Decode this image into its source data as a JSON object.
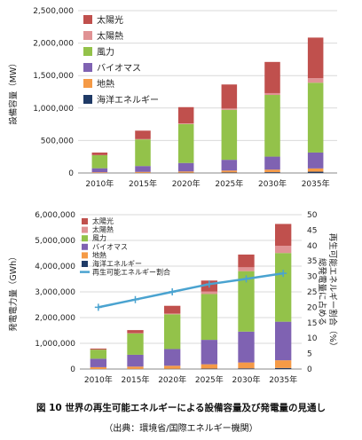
{
  "chart_data": [
    {
      "type": "bar",
      "stacked": true,
      "ylabel": "設備容量（MW）",
      "ylim": [
        0,
        2500000
      ],
      "yticks": [
        "0",
        "500,000",
        "1,000,000",
        "1,500,000",
        "2,000,000",
        "2,500,000"
      ],
      "grid": true,
      "legend": "top-left",
      "categories": [
        "2010年",
        "2015年",
        "2020年",
        "2025年",
        "2030年",
        "2035年"
      ],
      "series": [
        {
          "name": "海洋エネルギー",
          "color": "#1f3a66",
          "values": [
            1000,
            2000,
            4000,
            8000,
            12000,
            20000
          ]
        },
        {
          "name": "地熱",
          "color": "#f59a46",
          "values": [
            10000,
            15000,
            20000,
            30000,
            40000,
            50000
          ]
        },
        {
          "name": "バイオマス",
          "color": "#7f62b2",
          "values": [
            62000,
            90000,
            130000,
            165000,
            200000,
            245000
          ]
        },
        {
          "name": "風力",
          "color": "#93c24a",
          "values": [
            200000,
            410000,
            600000,
            770000,
            950000,
            1075000
          ]
        },
        {
          "name": "太陽熱",
          "color": "#e09294",
          "values": [
            2000,
            5000,
            10000,
            20000,
            28000,
            70000
          ]
        },
        {
          "name": "太陽光",
          "color": "#c0504d",
          "values": [
            40000,
            130000,
            250000,
            370000,
            480000,
            625000
          ]
        }
      ]
    },
    {
      "type": "bar",
      "stacked": true,
      "ylabel": "発電電力量（GWh）",
      "ylabel_right": "総発電量に占める再生可能エネルギー割合（%）",
      "ylim": [
        0,
        6000000
      ],
      "ylim_right": [
        0,
        50
      ],
      "yticks": [
        "0",
        "1,000,000",
        "2,000,000",
        "3,000,000",
        "4,000,000",
        "5,000,000",
        "6,000,000"
      ],
      "yticks_right": [
        "0",
        "5",
        "10",
        "15",
        "20",
        "25",
        "30",
        "35",
        "40",
        "45",
        "50"
      ],
      "grid": true,
      "legend": "top-left",
      "categories": [
        "2010年",
        "2015年",
        "2020年",
        "2025年",
        "2030年",
        "2035年"
      ],
      "series": [
        {
          "name": "海洋エネルギー",
          "color": "#1f3a66",
          "values": [
            2000,
            4000,
            8000,
            15000,
            25000,
            40000
          ]
        },
        {
          "name": "地熱",
          "color": "#f59a46",
          "values": [
            70000,
            90000,
            120000,
            170000,
            230000,
            300000
          ]
        },
        {
          "name": "バイオマス",
          "color": "#7f62b2",
          "values": [
            330000,
            460000,
            650000,
            950000,
            1200000,
            1500000
          ]
        },
        {
          "name": "風力",
          "color": "#93c24a",
          "values": [
            350000,
            830000,
            1350000,
            1780000,
            2350000,
            2670000
          ]
        },
        {
          "name": "太陽熱",
          "color": "#e09294",
          "values": [
            3000,
            10000,
            30000,
            100000,
            150000,
            280000
          ]
        },
        {
          "name": "太陽光",
          "color": "#c0504d",
          "values": [
            40000,
            120000,
            300000,
            425000,
            495000,
            850000
          ]
        }
      ],
      "line": {
        "name": "再生可能エネルギー割合",
        "color": "#4aa3d0",
        "values": [
          20,
          22.5,
          25,
          27.5,
          29.2,
          31
        ]
      }
    }
  ],
  "caption": {
    "title": "図 10  世界の再生可能エネルギーによる設備容量及び発電量の見通し",
    "source": "（出典：環境省/国際エネルギー機関）"
  }
}
